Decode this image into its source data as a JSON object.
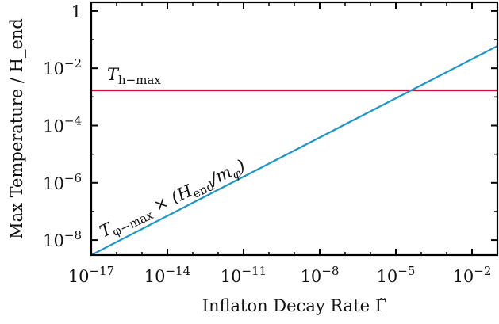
{
  "chart_data": {
    "type": "line",
    "xscale": "log",
    "yscale": "log",
    "xlim": [
      1e-17,
      0.1
    ],
    "ylim": [
      3e-09,
      2
    ],
    "xlabel": "Inflaton Decay Rate Γ̃",
    "ylabel": "Max Temperature / H_end",
    "xticks": [
      {
        "value": 1e-17,
        "base": "10",
        "exp": "−17"
      },
      {
        "value": 1e-14,
        "base": "10",
        "exp": "−14"
      },
      {
        "value": 1e-11,
        "base": "10",
        "exp": "−11"
      },
      {
        "value": 1e-08,
        "base": "10",
        "exp": "−8"
      },
      {
        "value": 1e-05,
        "base": "10",
        "exp": "−5"
      },
      {
        "value": 0.01,
        "base": "10",
        "exp": "−2"
      }
    ],
    "yticks": [
      {
        "value": 1,
        "base": "1",
        "exp": ""
      },
      {
        "value": 0.01,
        "base": "10",
        "exp": "−2"
      },
      {
        "value": 0.0001,
        "base": "10",
        "exp": "−4"
      },
      {
        "value": 1e-06,
        "base": "10",
        "exp": "−6"
      },
      {
        "value": 1e-08,
        "base": "10",
        "exp": "−8"
      }
    ],
    "series": [
      {
        "name": "T_h-max",
        "color": "#d0103a",
        "x": [
          1e-17,
          0.1
        ],
        "y": [
          0.0017,
          0.0017
        ]
      },
      {
        "name": "T_φ-max × (H_end/m_φ)",
        "color": "#1a96c8",
        "x": [
          1e-17,
          0.1
        ],
        "y": [
          3e-09,
          0.06
        ]
      }
    ],
    "annotations": {
      "h_label": {
        "main": "T",
        "sub": "h−max"
      },
      "phi_label": {
        "main": "T",
        "sub": "φ−max",
        "rest": " × (H",
        "sub2": "end",
        "rest2": "/m",
        "sub3": "φ",
        "close": ")"
      }
    },
    "grid": false,
    "legend": "none"
  }
}
